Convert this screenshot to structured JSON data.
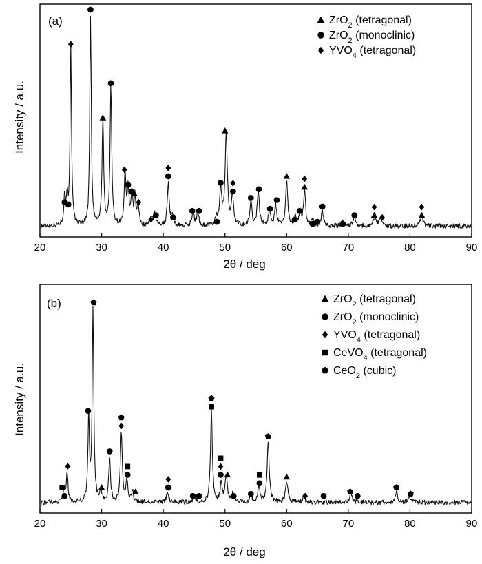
{
  "chart_data": [
    {
      "type": "line",
      "panel_label": "(a)",
      "xlabel": "2θ / deg",
      "ylabel": "Intensity / a.u.",
      "xlim": [
        20,
        90
      ],
      "xticks": [
        20,
        30,
        40,
        50,
        60,
        70,
        80,
        90
      ],
      "yticks_labeled": false,
      "grid": false,
      "legend": {
        "position": "top-right",
        "entries": [
          {
            "marker": "triangle",
            "formula": "ZrO",
            "sub": "2",
            "rest": " (tetragonal)"
          },
          {
            "marker": "circle",
            "formula": "ZrO",
            "sub": "2",
            "rest": " (monoclinic)"
          },
          {
            "marker": "diamond",
            "formula": "YVO",
            "sub": "4",
            "rest": " (tetragonal)"
          }
        ]
      },
      "baseline": 0.05,
      "peaks": [
        {
          "x": 24.0,
          "h": 0.13,
          "w": 0.16
        },
        {
          "x": 24.4,
          "h": 0.12,
          "w": 0.16
        },
        {
          "x": 25.0,
          "h": 0.82,
          "w": 0.14
        },
        {
          "x": 28.2,
          "h": 0.98,
          "w": 0.14
        },
        {
          "x": 30.2,
          "h": 0.48,
          "w": 0.16
        },
        {
          "x": 31.5,
          "h": 0.64,
          "w": 0.16
        },
        {
          "x": 33.8,
          "h": 0.24,
          "w": 0.16
        },
        {
          "x": 34.3,
          "h": 0.17,
          "w": 0.16
        },
        {
          "x": 34.9,
          "h": 0.15,
          "w": 0.16
        },
        {
          "x": 35.4,
          "h": 0.13,
          "w": 0.16
        },
        {
          "x": 35.9,
          "h": 0.1,
          "w": 0.16
        },
        {
          "x": 38.1,
          "h": 0.04,
          "w": 0.2
        },
        {
          "x": 38.6,
          "h": 0.05,
          "w": 0.2
        },
        {
          "x": 40.8,
          "h": 0.2,
          "w": 0.18
        },
        {
          "x": 41.4,
          "h": 0.05,
          "w": 0.18
        },
        {
          "x": 44.8,
          "h": 0.07,
          "w": 0.2
        },
        {
          "x": 45.6,
          "h": 0.06,
          "w": 0.2
        },
        {
          "x": 48.6,
          "h": 0.03,
          "w": 0.2
        },
        {
          "x": 49.3,
          "h": 0.17,
          "w": 0.2
        },
        {
          "x": 50.2,
          "h": 0.42,
          "w": 0.22
        },
        {
          "x": 51.2,
          "h": 0.14,
          "w": 0.2
        },
        {
          "x": 54.2,
          "h": 0.11,
          "w": 0.2
        },
        {
          "x": 55.4,
          "h": 0.15,
          "w": 0.22
        },
        {
          "x": 57.2,
          "h": 0.07,
          "w": 0.2
        },
        {
          "x": 58.2,
          "h": 0.1,
          "w": 0.2
        },
        {
          "x": 60.0,
          "h": 0.21,
          "w": 0.2
        },
        {
          "x": 61.4,
          "h": 0.04,
          "w": 0.2
        },
        {
          "x": 62.2,
          "h": 0.06,
          "w": 0.2
        },
        {
          "x": 62.9,
          "h": 0.16,
          "w": 0.2
        },
        {
          "x": 64.2,
          "h": 0.03,
          "w": 0.2
        },
        {
          "x": 65.8,
          "h": 0.07,
          "w": 0.2
        },
        {
          "x": 69.0,
          "h": 0.02,
          "w": 0.2
        },
        {
          "x": 71.0,
          "h": 0.05,
          "w": 0.22
        },
        {
          "x": 74.3,
          "h": 0.05,
          "w": 0.22
        },
        {
          "x": 75.2,
          "h": 0.04,
          "w": 0.22
        },
        {
          "x": 81.9,
          "h": 0.05,
          "w": 0.25
        }
      ],
      "markers": [
        {
          "x": 24.0,
          "y": 0.16,
          "s": [
            "circle"
          ]
        },
        {
          "x": 24.6,
          "y": 0.15,
          "s": [
            "circle"
          ]
        },
        {
          "x": 25.0,
          "y": 0.89,
          "s": [
            "diamond"
          ]
        },
        {
          "x": 28.2,
          "y": 1.05,
          "s": [
            "circle"
          ]
        },
        {
          "x": 30.2,
          "y": 0.55,
          "s": [
            "triangle"
          ]
        },
        {
          "x": 31.5,
          "y": 0.71,
          "s": [
            "circle"
          ]
        },
        {
          "x": 33.7,
          "y": 0.31,
          "s": [
            "diamond"
          ]
        },
        {
          "x": 34.3,
          "y": 0.24,
          "s": [
            "circle"
          ]
        },
        {
          "x": 34.8,
          "y": 0.21,
          "s": [
            "circle"
          ]
        },
        {
          "x": 35.3,
          "y": 0.2,
          "s": [
            "triangle"
          ]
        },
        {
          "x": 36.0,
          "y": 0.16,
          "s": [
            "diamond"
          ]
        },
        {
          "x": 38.0,
          "y": 0.08,
          "s": [
            "diamond"
          ]
        },
        {
          "x": 38.8,
          "y": 0.1,
          "s": [
            "circle"
          ]
        },
        {
          "x": 40.8,
          "y": 0.28,
          "s": [
            "circle",
            "diamond"
          ]
        },
        {
          "x": 41.6,
          "y": 0.09,
          "s": [
            "circle"
          ]
        },
        {
          "x": 44.7,
          "y": 0.12,
          "s": [
            "circle"
          ]
        },
        {
          "x": 45.8,
          "y": 0.12,
          "s": [
            "circle"
          ]
        },
        {
          "x": 48.7,
          "y": 0.07,
          "s": [
            "circle"
          ]
        },
        {
          "x": 49.3,
          "y": 0.25,
          "s": [
            "circle"
          ]
        },
        {
          "x": 50.0,
          "y": 0.49,
          "s": [
            "triangle"
          ]
        },
        {
          "x": 51.3,
          "y": 0.21,
          "s": [
            "circle",
            "diamond"
          ]
        },
        {
          "x": 54.2,
          "y": 0.18,
          "s": [
            "circle"
          ]
        },
        {
          "x": 55.5,
          "y": 0.22,
          "s": [
            "circle"
          ]
        },
        {
          "x": 57.3,
          "y": 0.13,
          "s": [
            "circle"
          ]
        },
        {
          "x": 58.4,
          "y": 0.17,
          "s": [
            "circle"
          ]
        },
        {
          "x": 60.0,
          "y": 0.28,
          "s": [
            "triangle"
          ]
        },
        {
          "x": 61.3,
          "y": 0.08,
          "s": [
            "circle"
          ]
        },
        {
          "x": 62.1,
          "y": 0.12,
          "s": [
            "circle"
          ]
        },
        {
          "x": 62.9,
          "y": 0.23,
          "s": [
            "triangle",
            "diamond"
          ]
        },
        {
          "x": 64.2,
          "y": 0.06,
          "s": [
            "circle"
          ]
        },
        {
          "x": 65.0,
          "y": 0.07,
          "s": [
            "circle"
          ]
        },
        {
          "x": 65.8,
          "y": 0.14,
          "s": [
            "circle"
          ]
        },
        {
          "x": 69.1,
          "y": 0.06,
          "s": [
            "circle"
          ]
        },
        {
          "x": 71.0,
          "y": 0.1,
          "s": [
            "circle"
          ]
        },
        {
          "x": 74.2,
          "y": 0.1,
          "s": [
            "triangle",
            "diamond"
          ]
        },
        {
          "x": 75.5,
          "y": 0.09,
          "s": [
            "diamond"
          ]
        },
        {
          "x": 81.9,
          "y": 0.1,
          "s": [
            "triangle",
            "diamond"
          ]
        }
      ]
    },
    {
      "type": "line",
      "panel_label": "(b)",
      "xlabel": "2θ / deg",
      "ylabel": "Intensity / a.u.",
      "xlim": [
        20,
        90
      ],
      "xticks": [
        20,
        30,
        40,
        50,
        60,
        70,
        80,
        90
      ],
      "yticks_labeled": false,
      "grid": false,
      "legend": {
        "position": "top-right",
        "entries": [
          {
            "marker": "triangle",
            "formula": "ZrO",
            "sub": "2",
            "rest": " (tetragonal)"
          },
          {
            "marker": "circle",
            "formula": "ZrO",
            "sub": "2",
            "rest": " (monoclinic)"
          },
          {
            "marker": "diamond",
            "formula": "YVO",
            "sub": "4",
            "rest": " (tetragonal)"
          },
          {
            "marker": "square",
            "formula": "CeVO",
            "sub": "4",
            "rest": " (tetragonal)"
          },
          {
            "marker": "pentagon",
            "formula": "CeO",
            "sub": "2",
            "rest": " (cubic)"
          }
        ]
      },
      "baseline": 0.05,
      "peaks": [
        {
          "x": 23.9,
          "h": 0.06,
          "w": 0.18
        },
        {
          "x": 24.4,
          "h": 0.14,
          "w": 0.16
        },
        {
          "x": 27.9,
          "h": 0.4,
          "w": 0.14
        },
        {
          "x": 28.6,
          "h": 0.91,
          "w": 0.15
        },
        {
          "x": 29.9,
          "h": 0.05,
          "w": 0.2
        },
        {
          "x": 31.3,
          "h": 0.21,
          "w": 0.17
        },
        {
          "x": 33.2,
          "h": 0.33,
          "w": 0.18
        },
        {
          "x": 34.1,
          "h": 0.1,
          "w": 0.18
        },
        {
          "x": 35.0,
          "h": 0.05,
          "w": 0.2
        },
        {
          "x": 40.7,
          "h": 0.05,
          "w": 0.22
        },
        {
          "x": 45.0,
          "h": 0.03,
          "w": 0.22
        },
        {
          "x": 47.8,
          "h": 0.43,
          "w": 0.18
        },
        {
          "x": 49.4,
          "h": 0.09,
          "w": 0.2
        },
        {
          "x": 50.2,
          "h": 0.12,
          "w": 0.22
        },
        {
          "x": 51.3,
          "h": 0.04,
          "w": 0.2
        },
        {
          "x": 54.2,
          "h": 0.04,
          "w": 0.2
        },
        {
          "x": 55.5,
          "h": 0.07,
          "w": 0.2
        },
        {
          "x": 57.0,
          "h": 0.29,
          "w": 0.2
        },
        {
          "x": 60.0,
          "h": 0.1,
          "w": 0.22
        },
        {
          "x": 62.8,
          "h": 0.03,
          "w": 0.22
        },
        {
          "x": 70.4,
          "h": 0.05,
          "w": 0.22
        },
        {
          "x": 77.8,
          "h": 0.05,
          "w": 0.22
        },
        {
          "x": 79.9,
          "h": 0.03,
          "w": 0.22
        }
      ],
      "markers": [
        {
          "x": 23.6,
          "y": 0.12,
          "s": [
            "square"
          ]
        },
        {
          "x": 24.0,
          "y": 0.08,
          "s": [
            "circle"
          ]
        },
        {
          "x": 24.5,
          "y": 0.22,
          "s": [
            "diamond"
          ]
        },
        {
          "x": 27.8,
          "y": 0.48,
          "s": [
            "circle"
          ]
        },
        {
          "x": 28.7,
          "y": 0.99,
          "s": [
            "pentagon"
          ]
        },
        {
          "x": 30.0,
          "y": 0.12,
          "s": [
            "triangle"
          ]
        },
        {
          "x": 31.3,
          "y": 0.29,
          "s": [
            "circle"
          ]
        },
        {
          "x": 33.2,
          "y": 0.41,
          "s": [
            "diamond",
            "pentagon"
          ]
        },
        {
          "x": 34.2,
          "y": 0.18,
          "s": [
            "circle",
            "square"
          ]
        },
        {
          "x": 35.5,
          "y": 0.1,
          "s": [
            "triangle"
          ]
        },
        {
          "x": 40.8,
          "y": 0.12,
          "s": [
            "circle",
            "diamond"
          ]
        },
        {
          "x": 44.8,
          "y": 0.08,
          "s": [
            "circle"
          ]
        },
        {
          "x": 45.8,
          "y": 0.08,
          "s": [
            "circle"
          ]
        },
        {
          "x": 47.8,
          "y": 0.5,
          "s": [
            "square",
            "pentagon"
          ]
        },
        {
          "x": 49.3,
          "y": 0.18,
          "s": [
            "circle",
            "diamond",
            "square"
          ]
        },
        {
          "x": 50.4,
          "y": 0.18,
          "s": [
            "triangle"
          ]
        },
        {
          "x": 51.4,
          "y": 0.08,
          "s": [
            "circle"
          ]
        },
        {
          "x": 54.2,
          "y": 0.09,
          "s": [
            "circle"
          ]
        },
        {
          "x": 55.6,
          "y": 0.14,
          "s": [
            "circle",
            "square"
          ]
        },
        {
          "x": 57.0,
          "y": 0.36,
          "s": [
            "pentagon"
          ]
        },
        {
          "x": 60.0,
          "y": 0.17,
          "s": [
            "triangle"
          ]
        },
        {
          "x": 63.0,
          "y": 0.08,
          "s": [
            "diamond"
          ]
        },
        {
          "x": 66.0,
          "y": 0.08,
          "s": [
            "circle"
          ]
        },
        {
          "x": 70.3,
          "y": 0.1,
          "s": [
            "pentagon"
          ]
        },
        {
          "x": 71.5,
          "y": 0.08,
          "s": [
            "circle"
          ]
        },
        {
          "x": 77.8,
          "y": 0.12,
          "s": [
            "pentagon"
          ]
        },
        {
          "x": 80.1,
          "y": 0.09,
          "s": [
            "pentagon"
          ]
        }
      ]
    }
  ]
}
